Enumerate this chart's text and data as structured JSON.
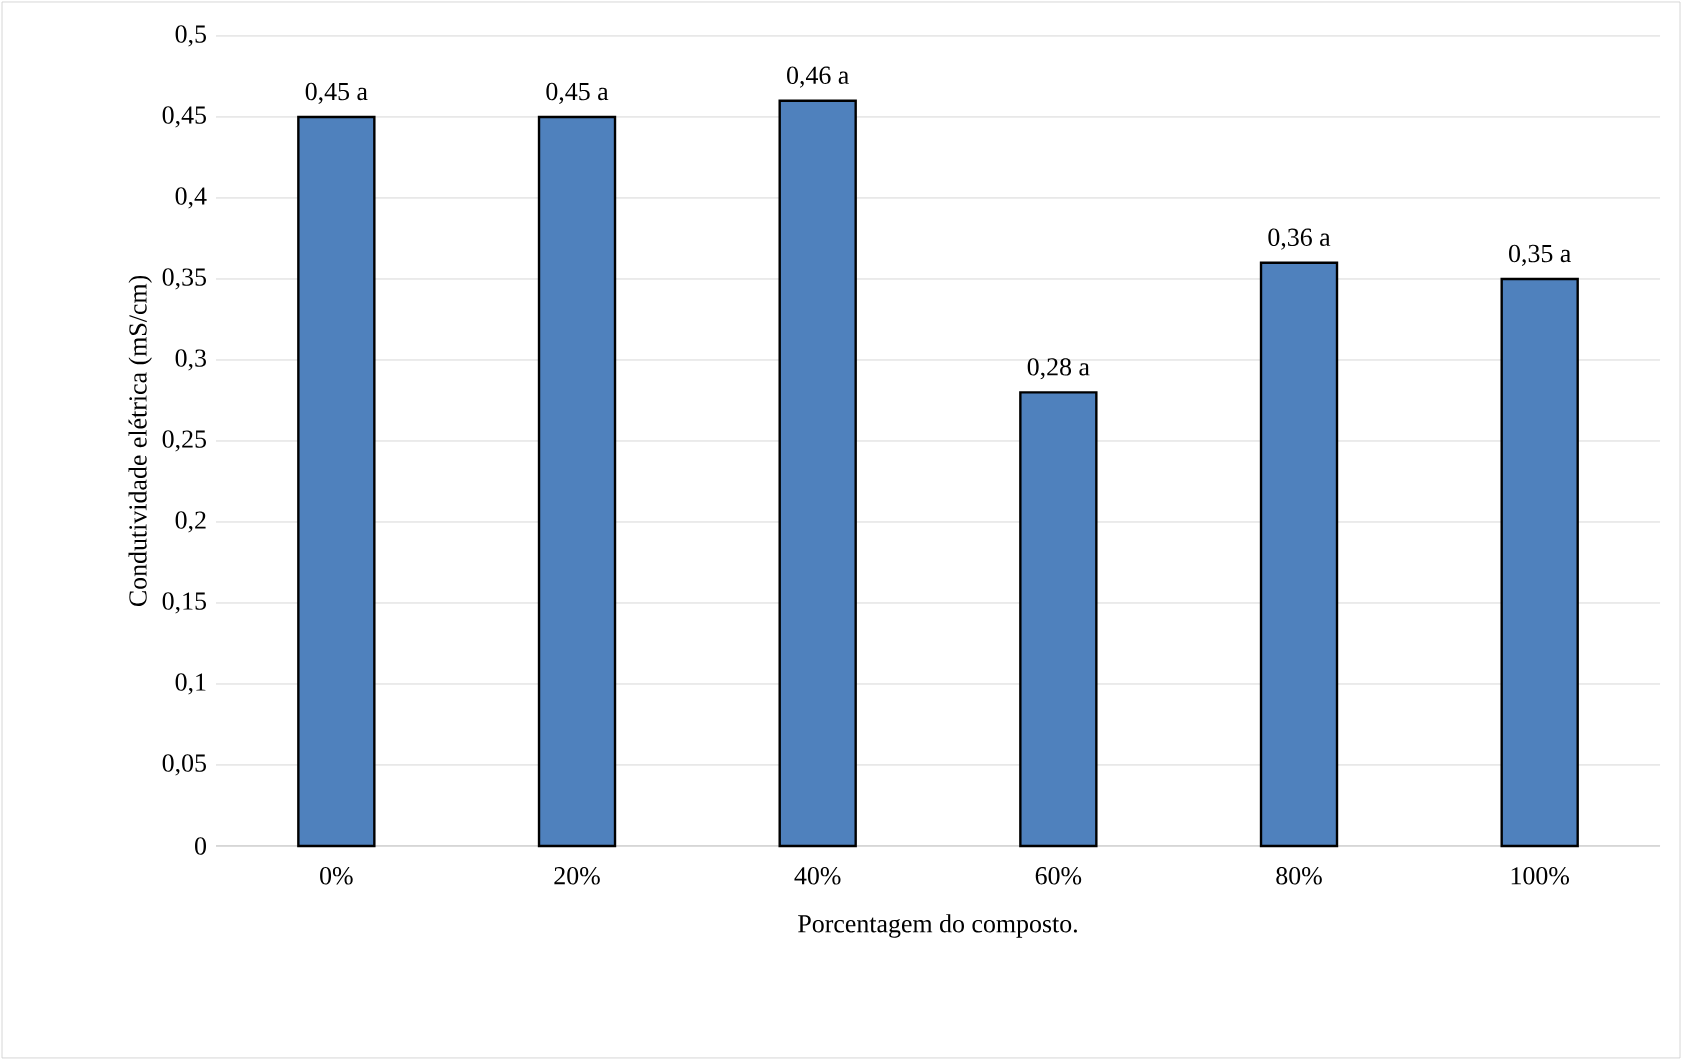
{
  "chart_data": {
    "type": "bar",
    "xlabel": "Porcentagem do composto.",
    "ylabel": "Condutividade elétrica (mS/cm)",
    "categories": [
      "0%",
      "20%",
      "40%",
      "60%",
      "80%",
      "100%"
    ],
    "values": [
      0.45,
      0.45,
      0.46,
      0.28,
      0.36,
      0.35
    ],
    "value_labels": [
      "0,45 a",
      "0,45 a",
      "0,46 a",
      "0,28 a",
      "0,36 a",
      "0,35 a"
    ],
    "color": "#4f81bd",
    "ylim": [
      0,
      0.5
    ],
    "yticks": [
      {
        "value": 0,
        "label": "0"
      },
      {
        "value": 0.05,
        "label": "0,05"
      },
      {
        "value": 0.1,
        "label": "0,1"
      },
      {
        "value": 0.15,
        "label": "0,15"
      },
      {
        "value": 0.2,
        "label": "0,2"
      },
      {
        "value": 0.25,
        "label": "0,25"
      },
      {
        "value": 0.3,
        "label": "0,3"
      },
      {
        "value": 0.35,
        "label": "0,35"
      },
      {
        "value": 0.4,
        "label": "0,4"
      },
      {
        "value": 0.45,
        "label": "0,45"
      },
      {
        "value": 0.5,
        "label": "0,5"
      }
    ],
    "grid": "y"
  }
}
